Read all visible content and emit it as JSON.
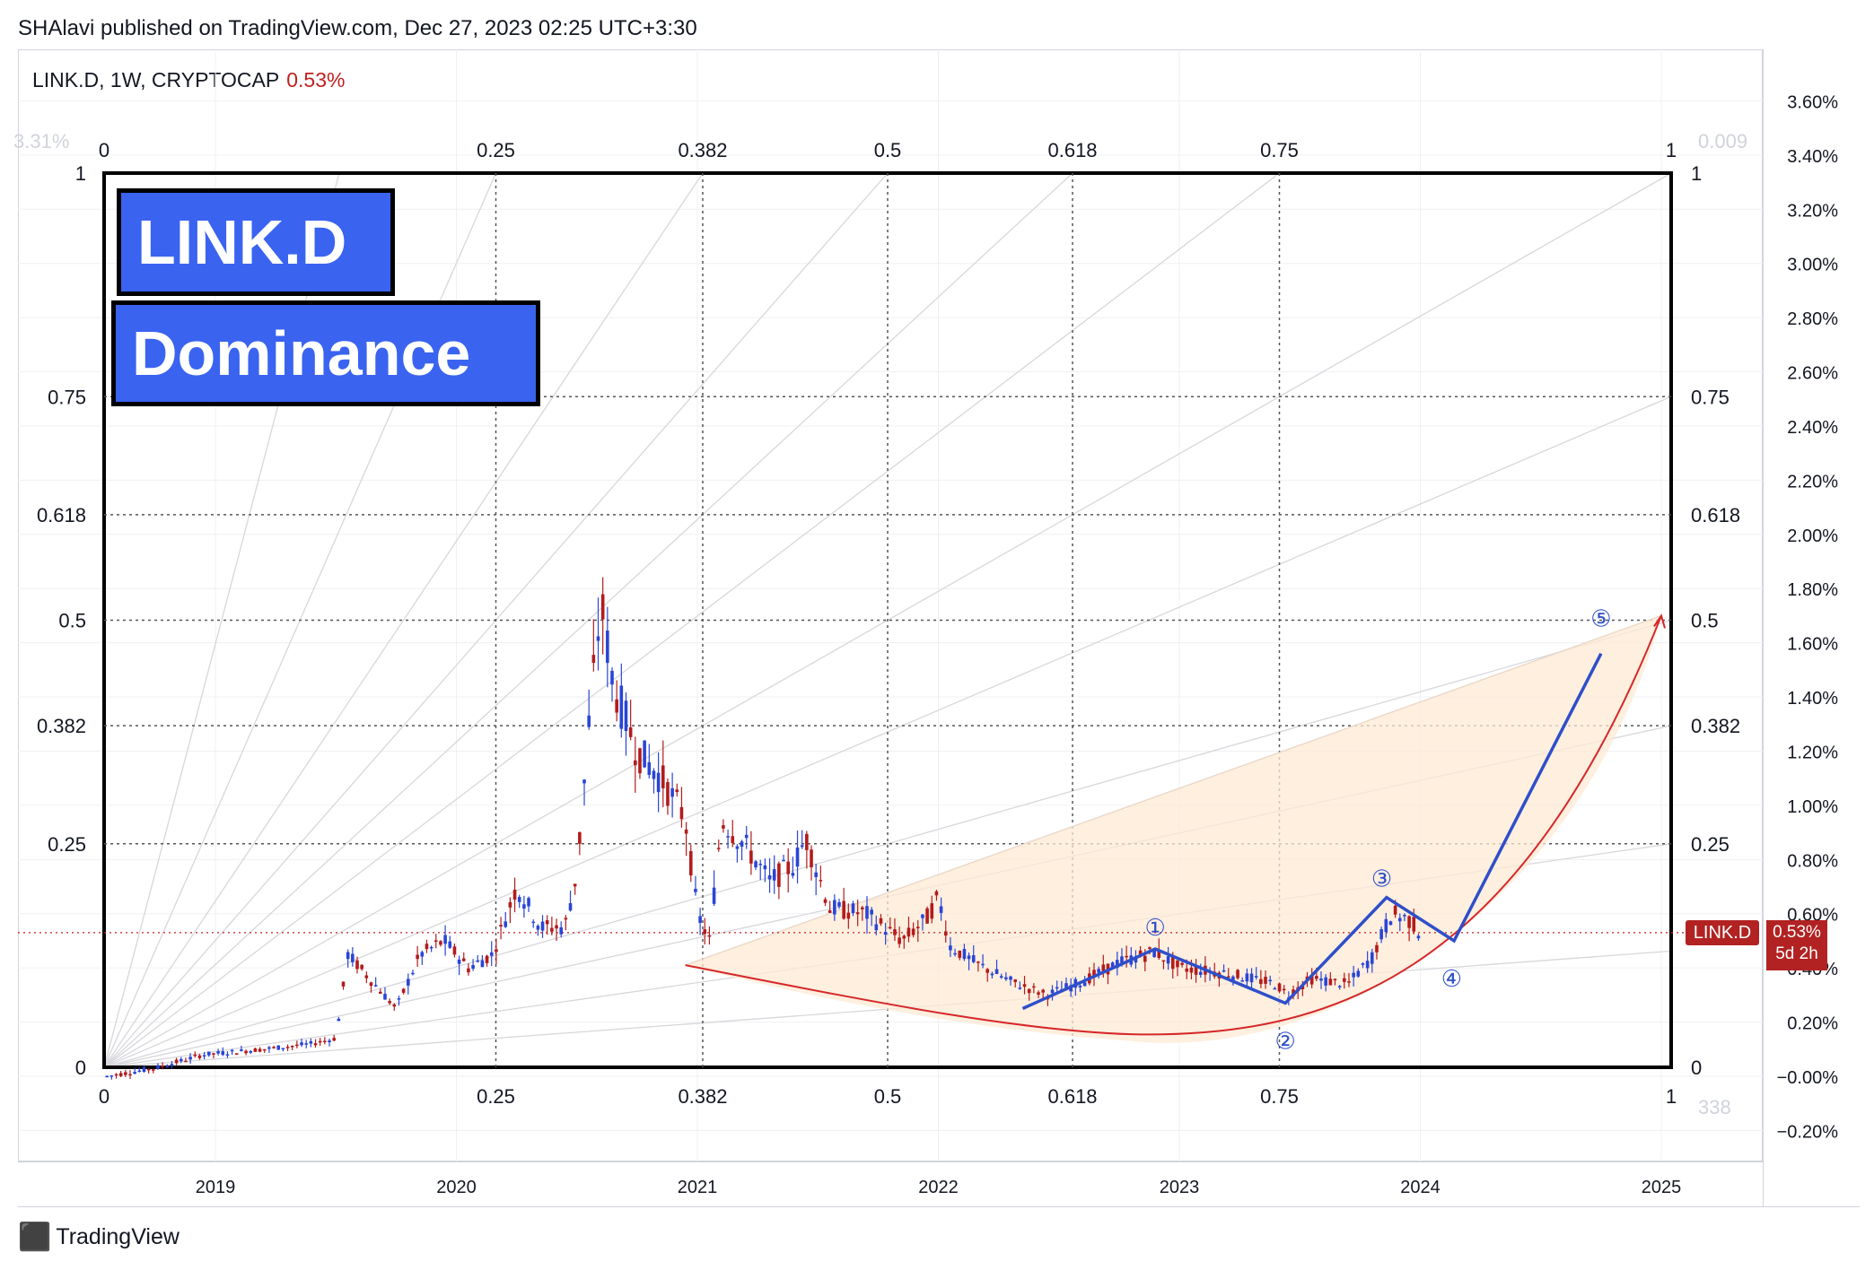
{
  "header": {
    "publisher_line": "SHAlavi published on TradingView.com, Dec 27, 2023 02:25 UTC+3:30"
  },
  "legend": {
    "symbol_line": "LINK.D, 1W, CRYPTOCAP",
    "last_value": "0.53%"
  },
  "overlay_text": {
    "title_box": "LINK.D",
    "subtitle_box": "Dominance"
  },
  "price_tag": {
    "name": "LINK.D",
    "value": "0.53%",
    "countdown": "5d 2h"
  },
  "footer": {
    "brand": "TradingView"
  },
  "colors": {
    "up_candle": "#2945d6",
    "down_candle": "#b31b1b",
    "wave_line": "#2f4fc9",
    "curve": "#d62728",
    "fib_fill": "#fde9d4",
    "label_box": "#3a63f0"
  },
  "chart_data": {
    "type": "candlestick",
    "symbol": "LINK.D",
    "timeframe": "1W",
    "exchange": "CRYPTOCAP",
    "y_axis": {
      "unit": "%",
      "ticks": [
        "3.60%",
        "3.40%",
        "3.20%",
        "3.00%",
        "2.80%",
        "2.60%",
        "2.40%",
        "2.20%",
        "2.00%",
        "1.80%",
        "1.60%",
        "1.40%",
        "1.20%",
        "1.00%",
        "0.80%",
        "0.60%",
        "0.40%",
        "0.20%",
        "−0.00%",
        "−0.20%"
      ],
      "tick_values": [
        3.6,
        3.4,
        3.2,
        3.0,
        2.8,
        2.6,
        2.4,
        2.2,
        2.0,
        1.8,
        1.6,
        1.4,
        1.2,
        1.0,
        0.8,
        0.6,
        0.4,
        0.2,
        0.0,
        -0.2
      ],
      "range": [
        -0.2,
        3.6
      ]
    },
    "x_axis": {
      "ticks": [
        "2019",
        "2020",
        "2021",
        "2022",
        "2023",
        "2024",
        "2025"
      ],
      "tick_years": [
        2019,
        2020,
        2021,
        2022,
        2023,
        2024,
        2025
      ]
    },
    "fib_time_zones": {
      "labels": [
        "0",
        "0.25",
        "0.382",
        "0.5",
        "0.618",
        "0.75",
        "1"
      ],
      "levels": [
        0,
        0.25,
        0.382,
        0.5,
        0.618,
        0.75,
        1
      ]
    },
    "fib_price_levels": {
      "labels": [
        "1",
        "0.75",
        "0.618",
        "0.5",
        "0.382",
        "0.25",
        "0"
      ],
      "levels": [
        1,
        0.75,
        0.618,
        0.5,
        0.382,
        0.25,
        0
      ]
    },
    "corner_labels": {
      "top_left": "3.31%",
      "top_right": "0.009",
      "bottom_right": "338"
    },
    "series_points": [
      [
        2018.55,
        0.0
      ],
      [
        2018.75,
        0.03
      ],
      [
        2018.95,
        0.08
      ],
      [
        2019.2,
        0.1
      ],
      [
        2019.4,
        0.12
      ],
      [
        2019.5,
        0.14
      ],
      [
        2019.55,
        0.45
      ],
      [
        2019.65,
        0.35
      ],
      [
        2019.75,
        0.25
      ],
      [
        2019.85,
        0.45
      ],
      [
        2019.95,
        0.5
      ],
      [
        2020.05,
        0.4
      ],
      [
        2020.15,
        0.45
      ],
      [
        2020.25,
        0.7
      ],
      [
        2020.35,
        0.55
      ],
      [
        2020.45,
        0.55
      ],
      [
        2020.5,
        0.75
      ],
      [
        2020.55,
        1.3
      ],
      [
        2020.6,
        1.75
      ],
      [
        2020.65,
        1.45
      ],
      [
        2020.75,
        1.2
      ],
      [
        2020.85,
        1.1
      ],
      [
        2020.95,
        0.95
      ],
      [
        2021.0,
        0.6
      ],
      [
        2021.05,
        0.5
      ],
      [
        2021.1,
        0.95
      ],
      [
        2021.2,
        0.85
      ],
      [
        2021.3,
        0.72
      ],
      [
        2021.4,
        0.78
      ],
      [
        2021.45,
        0.88
      ],
      [
        2021.55,
        0.62
      ],
      [
        2021.7,
        0.6
      ],
      [
        2021.85,
        0.5
      ],
      [
        2021.95,
        0.58
      ],
      [
        2022.0,
        0.66
      ],
      [
        2022.05,
        0.48
      ],
      [
        2022.15,
        0.42
      ],
      [
        2022.3,
        0.35
      ],
      [
        2022.45,
        0.3
      ],
      [
        2022.6,
        0.35
      ],
      [
        2022.75,
        0.42
      ],
      [
        2022.9,
        0.46
      ],
      [
        2023.0,
        0.4
      ],
      [
        2023.2,
        0.38
      ],
      [
        2023.4,
        0.34
      ],
      [
        2023.45,
        0.3
      ],
      [
        2023.55,
        0.36
      ],
      [
        2023.7,
        0.34
      ],
      [
        2023.8,
        0.44
      ],
      [
        2023.88,
        0.6
      ],
      [
        2023.95,
        0.58
      ],
      [
        2024.0,
        0.53
      ]
    ],
    "last_value": 0.53,
    "annotations": [
      {
        "label": "①",
        "x": 2022.9,
        "y": 0.55
      },
      {
        "label": "②",
        "x": 2023.44,
        "y": 0.13
      },
      {
        "label": "③",
        "x": 2023.84,
        "y": 0.73
      },
      {
        "label": "④",
        "x": 2024.13,
        "y": 0.36
      },
      {
        "label": "⑤",
        "x": 2024.75,
        "y": 1.69
      }
    ],
    "wave_path": [
      [
        2022.35,
        0.25
      ],
      [
        2022.9,
        0.47
      ],
      [
        2023.44,
        0.27
      ],
      [
        2023.86,
        0.66
      ],
      [
        2024.14,
        0.5
      ],
      [
        2024.75,
        1.56
      ]
    ]
  }
}
